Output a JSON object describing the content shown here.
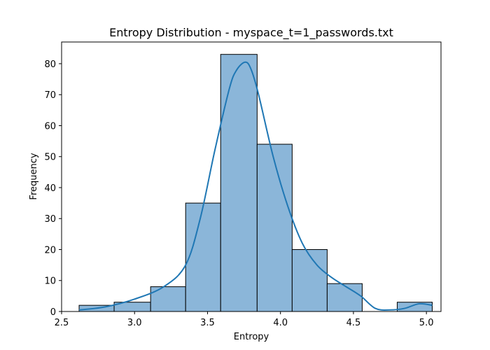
{
  "chart_data": {
    "type": "bar",
    "title": "Entropy Distribution - myspace_t=1_passwords.txt",
    "xlabel": "Entropy",
    "ylabel": "Frequency",
    "xlim": [
      2.5,
      5.1
    ],
    "ylim": [
      0,
      87
    ],
    "xticks": [
      2.5,
      3.0,
      3.5,
      4.0,
      4.5,
      5.0
    ],
    "yticks": [
      0,
      10,
      20,
      30,
      40,
      50,
      60,
      70,
      80
    ],
    "bins": [
      {
        "x0": 2.62,
        "x1": 2.86,
        "count": 2
      },
      {
        "x0": 2.86,
        "x1": 3.11,
        "count": 3
      },
      {
        "x0": 3.11,
        "x1": 3.35,
        "count": 8
      },
      {
        "x0": 3.35,
        "x1": 3.59,
        "count": 35
      },
      {
        "x0": 3.59,
        "x1": 3.84,
        "count": 83
      },
      {
        "x0": 3.84,
        "x1": 4.08,
        "count": 54
      },
      {
        "x0": 4.08,
        "x1": 4.32,
        "count": 20
      },
      {
        "x0": 4.32,
        "x1": 4.56,
        "count": 9
      },
      {
        "x0": 4.56,
        "x1": 4.8,
        "count": 0
      },
      {
        "x0": 4.8,
        "x1": 5.04,
        "count": 3
      }
    ],
    "kde": {
      "x": [
        2.62,
        2.8,
        3.0,
        3.2,
        3.35,
        3.45,
        3.55,
        3.65,
        3.7,
        3.76,
        3.8,
        3.85,
        3.95,
        4.05,
        4.15,
        4.25,
        4.35,
        4.45,
        4.55,
        4.65,
        4.75,
        4.85,
        4.95,
        5.04
      ],
      "y": [
        0.5,
        1.5,
        4.0,
        8.0,
        15.0,
        30.0,
        52.0,
        72.0,
        78.0,
        80.5,
        78.0,
        70.0,
        50.0,
        34.0,
        22.0,
        15.0,
        11.0,
        8.0,
        5.0,
        1.0,
        0.5,
        1.0,
        2.5,
        2.0
      ]
    },
    "grid": false,
    "colors": {
      "bar_fill": "#8bb6d9",
      "bar_edge": "#000000",
      "kde_line": "#1f77b4"
    }
  }
}
